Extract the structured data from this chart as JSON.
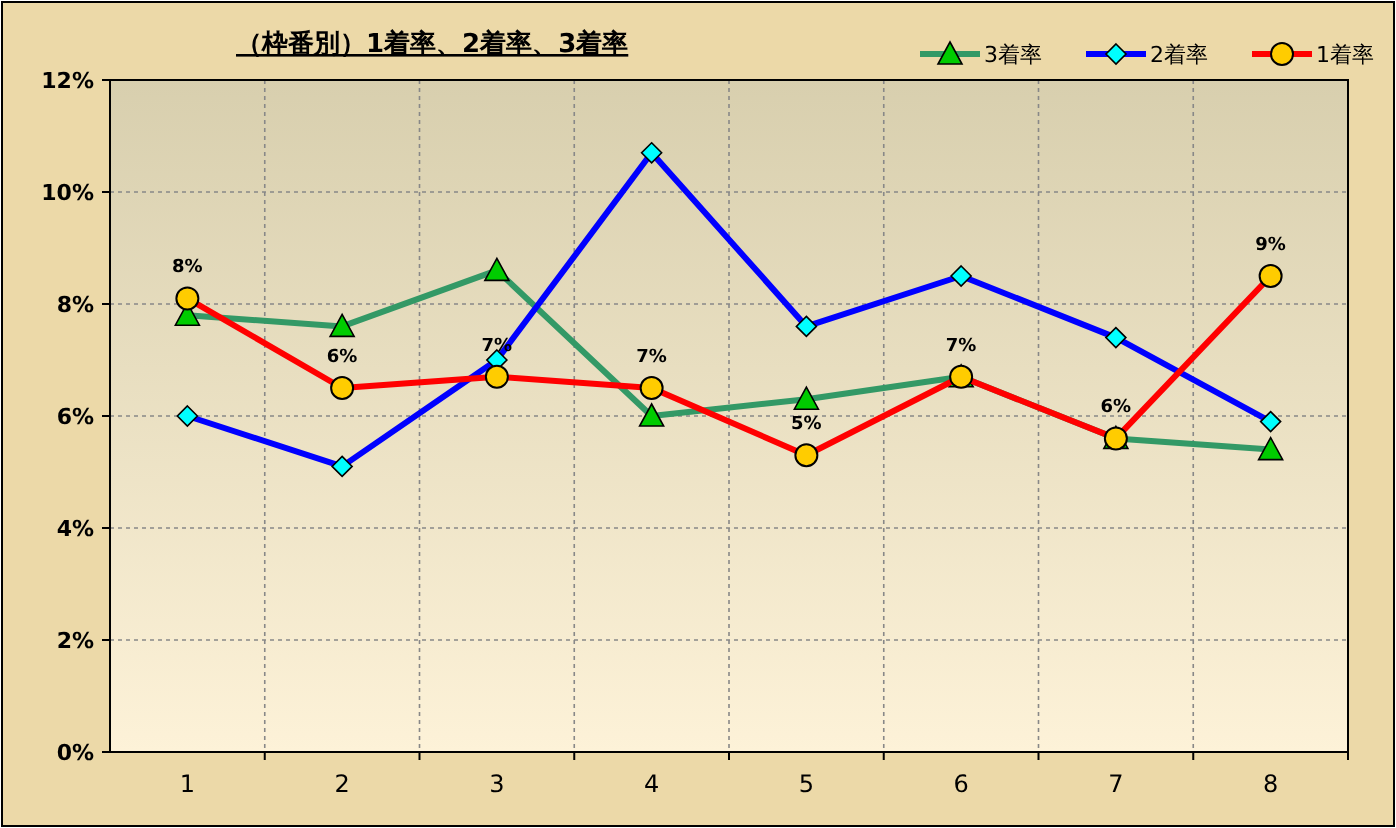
{
  "chart_data": {
    "type": "line",
    "title": "（枠番別）1着率、2着率、3着率",
    "categories": [
      "1",
      "2",
      "3",
      "4",
      "5",
      "6",
      "7",
      "8"
    ],
    "ylim": [
      0,
      12
    ],
    "yticks": [
      {
        "value": 0,
        "label": "0%"
      },
      {
        "value": 2,
        "label": "2%"
      },
      {
        "value": 4,
        "label": "4%"
      },
      {
        "value": 6,
        "label": "6%"
      },
      {
        "value": 8,
        "label": "8%"
      },
      {
        "value": 10,
        "label": "10%"
      },
      {
        "value": 12,
        "label": "12%"
      }
    ],
    "grid": true,
    "legend": "top right",
    "series": [
      {
        "name": "3着率",
        "color": "#339966",
        "marker": "triangle",
        "colors": [
          "#00cc00",
          "#00cc00",
          "#00cc00",
          "#00cc00",
          "#00cc00",
          "#00cc00",
          "#00cc00",
          "#00cc00"
        ],
        "values": [
          7.8,
          7.6,
          8.6,
          6.0,
          6.3,
          6.7,
          5.6,
          5.4
        ]
      },
      {
        "name": "2着率",
        "color": "#0000ff",
        "marker": "diamond",
        "colors": [
          "#00ffff",
          "#00ffff",
          "#00ffff",
          "#00ffff",
          "#00ffff",
          "#00ffff",
          "#00ffff",
          "#00ffff"
        ],
        "values": [
          6.0,
          5.1,
          7.0,
          10.7,
          7.6,
          8.5,
          7.4,
          5.9
        ]
      },
      {
        "name": "1着率",
        "color": "#ff0000",
        "marker": "circle",
        "colors": [
          "#ffcc00",
          "#ffcc00",
          "#ffcc00",
          "#ffcc00",
          "#ffcc00",
          "#ffcc00",
          "#ffcc00",
          "#ffcc00"
        ],
        "values": [
          8.1,
          6.5,
          6.7,
          6.5,
          5.3,
          6.7,
          5.6,
          8.5
        ],
        "value_labels": [
          "8%",
          "6%",
          "7%",
          "7%",
          "5%",
          "7%",
          "6%",
          "9%"
        ]
      }
    ]
  }
}
